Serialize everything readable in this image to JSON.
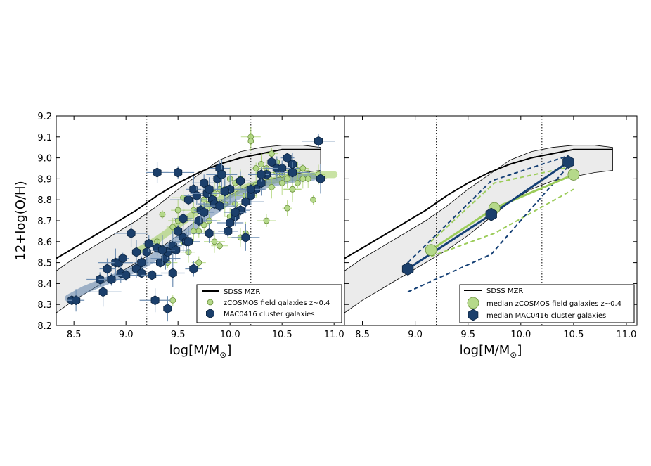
{
  "chart_data": [
    {
      "type": "scatter",
      "title": "",
      "xlabel": "log[M/M",
      "xlabel_sub": "⊙",
      "xlabel_close": "]",
      "ylabel": "12+log(O/H)",
      "xlim": [
        8.33,
        11.1
      ],
      "ylim": [
        8.2,
        9.2
      ],
      "xticks": [
        "8.5",
        "9.0",
        "9.5",
        "10.0",
        "10.5",
        "11.0"
      ],
      "yticks": [
        "8.2",
        "8.3",
        "8.4",
        "8.5",
        "8.6",
        "8.7",
        "8.8",
        "8.9",
        "9.0",
        "9.1",
        "9.2"
      ],
      "vlines": [
        9.2,
        10.2
      ],
      "legend_position": "lower-right",
      "legend": [
        "SDSS MZR",
        "zCOSMOS field galaxies z∼0.4",
        "MAC0416 cluster galaxies"
      ],
      "sdss_mzr": {
        "x": [
          8.33,
          8.5,
          8.7,
          8.9,
          9.1,
          9.3,
          9.5,
          9.7,
          9.9,
          10.1,
          10.3,
          10.5,
          10.7,
          10.87
        ],
        "y": [
          8.52,
          8.57,
          8.63,
          8.69,
          8.75,
          8.82,
          8.88,
          8.93,
          8.97,
          9.0,
          9.02,
          9.04,
          9.04,
          9.04
        ],
        "upper": [
          8.46,
          8.52,
          8.58,
          8.64,
          8.7,
          8.77,
          8.85,
          8.92,
          8.99,
          9.03,
          9.05,
          9.06,
          9.06,
          9.05
        ],
        "lower": [
          8.26,
          8.32,
          8.38,
          8.44,
          8.5,
          8.56,
          8.63,
          8.71,
          8.79,
          8.85,
          8.89,
          8.91,
          8.93,
          8.94
        ]
      },
      "zcosmos_band": {
        "x": [
          9.1,
          9.3,
          9.5,
          9.7,
          9.9,
          10.1,
          10.3,
          10.5,
          10.7,
          10.9,
          11.0
        ],
        "y": [
          8.55,
          8.61,
          8.68,
          8.75,
          8.8,
          8.85,
          8.88,
          8.9,
          8.91,
          8.92,
          8.92
        ]
      },
      "mac0416_band": {
        "x": [
          8.45,
          8.6,
          8.8,
          9.0,
          9.2,
          9.4,
          9.6,
          9.8,
          10.0,
          10.2,
          10.4,
          10.6,
          10.8
        ],
        "y": [
          8.33,
          8.37,
          8.41,
          8.45,
          8.5,
          8.57,
          8.65,
          8.73,
          8.8,
          8.85,
          8.88,
          8.9,
          8.91
        ]
      },
      "zcosmos_points": {
        "x": [
          9.35,
          9.45,
          9.5,
          9.55,
          9.6,
          9.65,
          9.7,
          9.75,
          9.8,
          9.85,
          9.9,
          9.95,
          10.0,
          10.05,
          10.1,
          10.15,
          10.2,
          10.25,
          10.3,
          10.35,
          10.4,
          10.45,
          10.5,
          10.55,
          10.6,
          10.65,
          10.7,
          10.75,
          10.8,
          10.85,
          9.4,
          9.6,
          9.7,
          9.85,
          9.95,
          10.05,
          10.15,
          10.25,
          10.35,
          10.45,
          10.55,
          10.65,
          10.2,
          10.4,
          10.6,
          9.3,
          9.5,
          9.8,
          10.0,
          10.3,
          9.55,
          9.75,
          9.9,
          10.1,
          10.5,
          10.7,
          9.45,
          9.65,
          10.35,
          10.15
        ],
        "y": [
          8.73,
          8.67,
          8.7,
          8.6,
          8.55,
          8.75,
          8.65,
          8.8,
          8.7,
          8.83,
          8.85,
          8.78,
          8.72,
          8.88,
          8.9,
          8.8,
          9.1,
          8.95,
          8.97,
          8.92,
          8.86,
          8.93,
          8.88,
          8.76,
          8.85,
          8.94,
          8.95,
          8.9,
          8.8,
          8.92,
          8.5,
          8.55,
          8.5,
          8.6,
          8.85,
          8.78,
          8.82,
          8.87,
          8.95,
          8.98,
          8.9,
          8.88,
          9.08,
          9.02,
          8.85,
          8.6,
          8.75,
          8.78,
          8.9,
          8.97,
          8.81,
          8.68,
          8.58,
          8.62,
          8.92,
          8.9,
          8.32,
          8.65,
          8.7,
          8.64
        ]
      },
      "mac0416_points": {
        "x": [
          8.48,
          8.52,
          8.75,
          8.78,
          8.82,
          8.86,
          8.9,
          8.95,
          9.0,
          9.05,
          9.1,
          9.15,
          9.2,
          9.22,
          9.25,
          9.28,
          9.3,
          9.33,
          9.38,
          9.4,
          9.45,
          9.48,
          9.5,
          9.55,
          9.58,
          9.6,
          9.65,
          9.68,
          9.7,
          9.72,
          9.75,
          9.78,
          9.8,
          9.83,
          9.85,
          9.88,
          9.9,
          9.92,
          9.95,
          9.98,
          10.0,
          10.05,
          10.1,
          10.15,
          10.2,
          10.25,
          10.3,
          10.35,
          10.4,
          10.45,
          10.5,
          10.55,
          10.6,
          10.85,
          10.87,
          9.3,
          9.5,
          9.6,
          9.75,
          9.9,
          9.95,
          10.1,
          10.2,
          9.4,
          9.55,
          8.93,
          9.1,
          9.65,
          10.0,
          10.15,
          10.3,
          9.35,
          10.6,
          9.15,
          9.45,
          9.8,
          8.97,
          10.05
        ],
        "y": [
          8.32,
          8.32,
          8.42,
          8.36,
          8.47,
          8.42,
          8.5,
          8.45,
          8.44,
          8.64,
          8.47,
          8.45,
          8.55,
          8.59,
          8.44,
          8.32,
          8.57,
          8.5,
          8.52,
          8.55,
          8.58,
          8.56,
          8.65,
          8.62,
          8.6,
          8.8,
          8.85,
          8.82,
          8.7,
          8.75,
          8.88,
          8.83,
          8.85,
          8.8,
          8.78,
          8.9,
          8.95,
          8.92,
          8.84,
          8.65,
          8.85,
          8.72,
          8.75,
          8.62,
          8.82,
          8.85,
          8.88,
          8.92,
          8.98,
          8.95,
          8.95,
          9.0,
          8.97,
          9.08,
          8.9,
          8.93,
          8.93,
          8.6,
          8.74,
          8.77,
          8.84,
          8.89,
          8.85,
          8.28,
          8.71,
          8.5,
          8.55,
          8.47,
          8.69,
          8.79,
          8.92,
          8.56,
          8.93,
          8.5,
          8.45,
          8.64,
          8.52,
          8.74
        ]
      }
    },
    {
      "type": "line",
      "title": "",
      "xlabel": "log[M/M",
      "xlabel_sub": "⊙",
      "xlabel_close": "]",
      "ylabel": "",
      "xlim": [
        8.33,
        11.1
      ],
      "ylim": [
        8.2,
        9.2
      ],
      "xticks": [
        "8.5",
        "9.0",
        "9.5",
        "10.0",
        "10.5",
        "11.0"
      ],
      "vlines": [
        9.2,
        10.2
      ],
      "legend_position": "lower-right",
      "legend": [
        "SDSS MZR",
        "median zCOSMOS field galaxies z∼0.4",
        "median MAC0416 cluster galaxies"
      ],
      "series": [
        {
          "name": "median zCOSMOS field galaxies z∼0.4",
          "x": [
            9.15,
            9.75,
            10.5
          ],
          "y": [
            8.56,
            8.76,
            8.92
          ]
        },
        {
          "name": "median MAC0416 cluster galaxies",
          "x": [
            8.93,
            9.72,
            10.45
          ],
          "y": [
            8.47,
            8.73,
            8.98
          ]
        }
      ],
      "zcosmos_upper": {
        "x": [
          9.15,
          9.75,
          10.5
        ],
        "y": [
          8.6,
          8.88,
          8.96
        ]
      },
      "zcosmos_lower": {
        "x": [
          9.15,
          9.75,
          10.5
        ],
        "y": [
          8.53,
          8.64,
          8.85
        ]
      },
      "mac_upper": {
        "x": [
          8.93,
          9.72,
          10.45
        ],
        "y": [
          8.5,
          8.89,
          9.01
        ]
      },
      "mac_lower": {
        "x": [
          8.93,
          9.72,
          10.45
        ],
        "y": [
          8.36,
          8.54,
          8.96
        ]
      }
    }
  ]
}
